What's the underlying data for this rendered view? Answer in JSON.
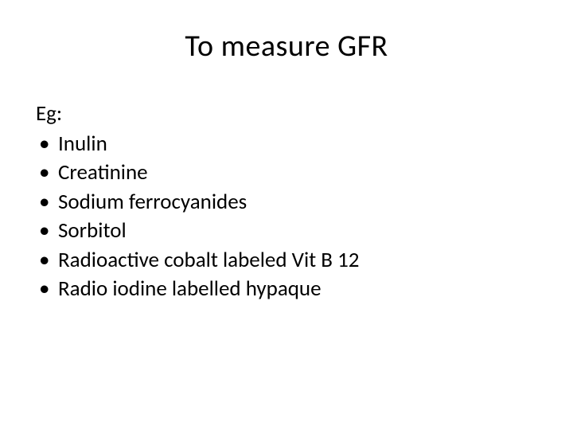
{
  "slide": {
    "title": "To measure GFR",
    "intro": "Eg:",
    "bullets": [
      "Inulin",
      "Creatinine",
      "Sodium ferrocyanides",
      "Sorbitol",
      "Radioactive cobalt labeled Vit B 12",
      "Radio iodine labelled hypaque"
    ],
    "colors": {
      "background": "#ffffff",
      "text": "#000000"
    },
    "typography": {
      "title_fontsize": 38,
      "body_fontsize": 27,
      "font_family": "Calibri"
    }
  }
}
